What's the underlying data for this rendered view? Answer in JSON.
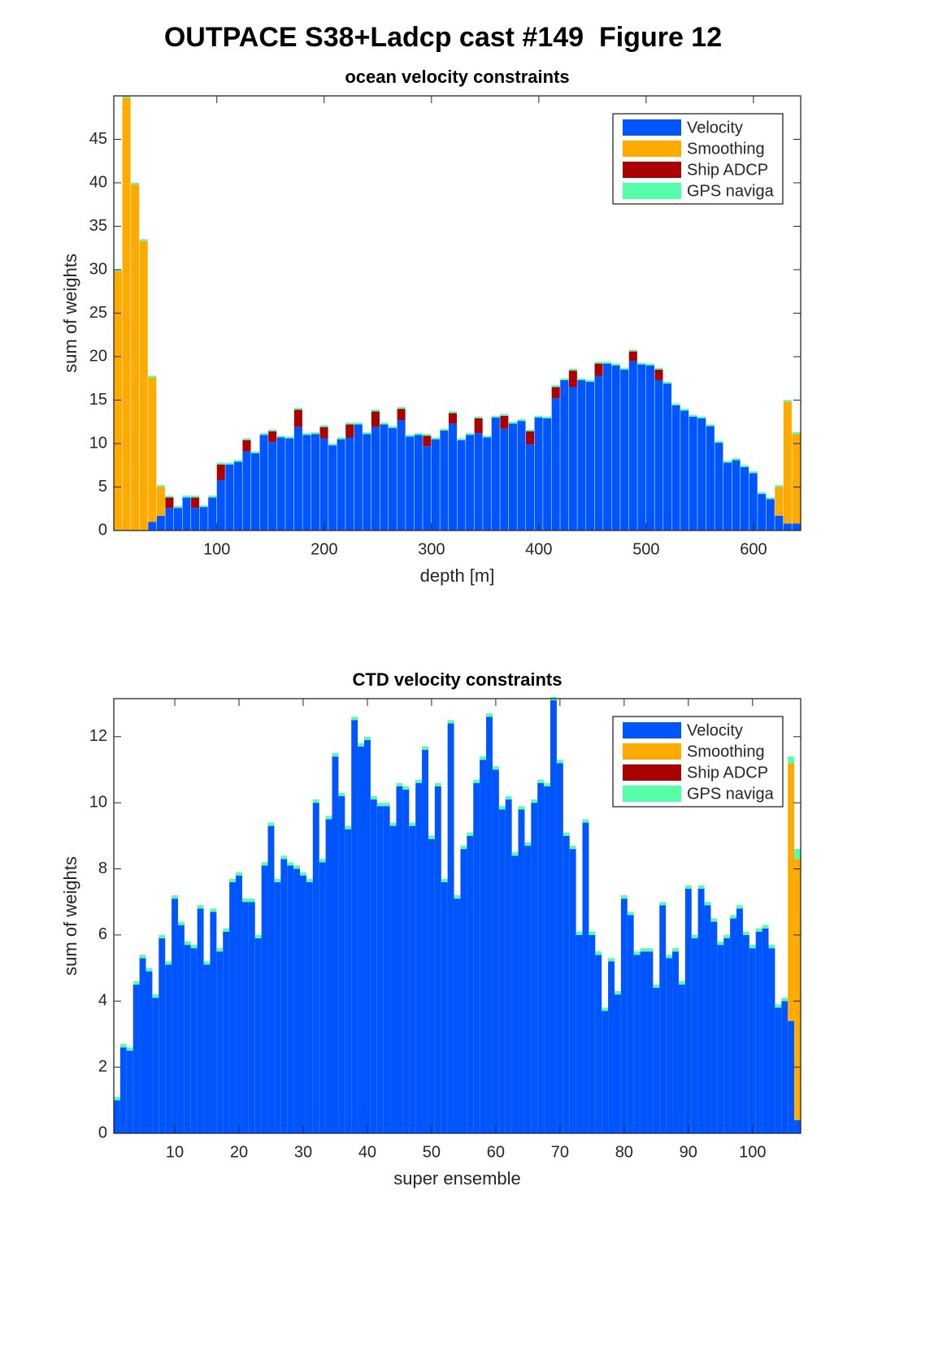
{
  "title": "OUTPACE S38+Ladcp cast #149  Figure 12",
  "chart_data": [
    {
      "type": "bar",
      "stacked": true,
      "title": "ocean velocity constraints",
      "xlabel": "depth [m]",
      "ylabel": "sum of weights",
      "x": [
        8,
        16,
        24,
        32,
        40,
        48,
        56,
        64,
        72,
        80,
        88,
        96,
        104,
        112,
        120,
        128,
        136,
        144,
        152,
        160,
        168,
        176,
        184,
        192,
        200,
        208,
        216,
        224,
        232,
        240,
        248,
        256,
        264,
        272,
        280,
        288,
        296,
        304,
        312,
        320,
        328,
        336,
        344,
        352,
        360,
        368,
        376,
        384,
        392,
        400,
        408,
        416,
        424,
        432,
        440,
        448,
        456,
        464,
        472,
        480,
        488,
        496,
        504,
        512,
        520,
        528,
        536,
        544,
        552,
        560,
        568,
        576,
        584,
        592,
        600,
        608,
        616,
        624,
        632,
        640
      ],
      "xlim": [
        4,
        644
      ],
      "xticks": [
        100,
        200,
        300,
        400,
        500,
        600
      ],
      "ylim": [
        0,
        50
      ],
      "yticks": [
        0,
        5,
        10,
        15,
        20,
        25,
        30,
        35,
        40,
        45
      ],
      "legend": "upper right",
      "series": [
        {
          "name": "Velocity",
          "color": "#0055ff",
          "values": [
            0,
            0,
            0,
            0,
            1,
            1.7,
            2.6,
            2.6,
            3.8,
            2.6,
            2.7,
            3.8,
            5.8,
            7.6,
            7.9,
            9.1,
            8.9,
            11,
            10.2,
            10.7,
            10.6,
            11.9,
            11,
            11.1,
            10.6,
            9.8,
            10.5,
            10.7,
            12.2,
            11.1,
            11.9,
            12.2,
            11.8,
            12.7,
            10.8,
            11,
            9.7,
            10.5,
            11.5,
            12.3,
            10.4,
            11,
            11.2,
            10.7,
            13,
            11.7,
            12.3,
            12.6,
            9.9,
            13,
            12.9,
            15.2,
            17.3,
            16.5,
            17.3,
            17.1,
            17.8,
            19.2,
            19,
            18.5,
            19.5,
            19.1,
            19,
            17.3,
            16.9,
            14.4,
            13.8,
            13.1,
            12.9,
            12,
            10.1,
            7.8,
            8.1,
            7.3,
            6.6,
            4.2,
            3.6,
            1.7,
            0.8,
            0.8
          ]
        },
        {
          "name": "Smoothing",
          "color": "#ffaa00",
          "values": [
            29.8,
            49.8,
            39.8,
            33.3,
            16.6,
            3.3,
            0,
            0,
            0,
            0,
            0,
            0,
            0,
            0,
            0,
            0,
            0,
            0,
            0,
            0,
            0,
            0,
            0,
            0,
            0,
            0,
            0,
            0,
            0,
            0,
            0,
            0,
            0,
            0,
            0,
            0,
            0,
            0,
            0,
            0,
            0,
            0,
            0,
            0,
            0,
            0,
            0,
            0,
            0,
            0,
            0,
            0,
            0,
            0,
            0,
            0,
            0,
            0,
            0,
            0,
            0,
            0,
            0,
            0,
            0,
            0,
            0,
            0,
            0,
            0,
            0,
            0,
            0,
            0,
            0,
            0,
            0,
            3.3,
            14,
            10.3
          ]
        },
        {
          "name": "Ship ADCP",
          "color": "#aa0000",
          "values": [
            0,
            0,
            0,
            0,
            0,
            0,
            1.2,
            0,
            0,
            1.2,
            0,
            0,
            1.8,
            0,
            0,
            1.3,
            0,
            0,
            1.2,
            0,
            0,
            2,
            0,
            0,
            1.3,
            0,
            0,
            1.5,
            0,
            0,
            1.8,
            0,
            0,
            1.3,
            0,
            0,
            1.2,
            0,
            0,
            1.2,
            0,
            0,
            1.7,
            0,
            0,
            1.5,
            0,
            0,
            1.5,
            0,
            0,
            1.3,
            0,
            1.9,
            0,
            0,
            1.4,
            0,
            0,
            0,
            1.1,
            0,
            0,
            1.2,
            0,
            0,
            0,
            0,
            0,
            0,
            0,
            0,
            0,
            0,
            0,
            0,
            0,
            0,
            0,
            0
          ]
        },
        {
          "name": "GPS naviga",
          "color": "#55ffaa",
          "values": [
            0.2,
            0.2,
            0.2,
            0.2,
            0.2,
            0.2,
            0.2,
            0.2,
            0.2,
            0.2,
            0.2,
            0.2,
            0.2,
            0.2,
            0.2,
            0.2,
            0.2,
            0.2,
            0.2,
            0.2,
            0.2,
            0.2,
            0.2,
            0.2,
            0.2,
            0.2,
            0.2,
            0.2,
            0.2,
            0.2,
            0.2,
            0.2,
            0.2,
            0.2,
            0.2,
            0.2,
            0.2,
            0.2,
            0.2,
            0.2,
            0.2,
            0.2,
            0.2,
            0.2,
            0.2,
            0.2,
            0.2,
            0.2,
            0.2,
            0.2,
            0.2,
            0.2,
            0.2,
            0.2,
            0.2,
            0.2,
            0.2,
            0.2,
            0.2,
            0.2,
            0.2,
            0.2,
            0.2,
            0.2,
            0.2,
            0.2,
            0.2,
            0.2,
            0.2,
            0.2,
            0.2,
            0.2,
            0.2,
            0.2,
            0.2,
            0.2,
            0.2,
            0.2,
            0.2,
            0.2
          ]
        }
      ]
    },
    {
      "type": "bar",
      "stacked": true,
      "title": "CTD velocity constraints",
      "xlabel": "super ensemble",
      "ylabel": "sum of weights",
      "x": [
        1,
        2,
        3,
        4,
        5,
        6,
        7,
        8,
        9,
        10,
        11,
        12,
        13,
        14,
        15,
        16,
        17,
        18,
        19,
        20,
        21,
        22,
        23,
        24,
        25,
        26,
        27,
        28,
        29,
        30,
        31,
        32,
        33,
        34,
        35,
        36,
        37,
        38,
        39,
        40,
        41,
        42,
        43,
        44,
        45,
        46,
        47,
        48,
        49,
        50,
        51,
        52,
        53,
        54,
        55,
        56,
        57,
        58,
        59,
        60,
        61,
        62,
        63,
        64,
        65,
        66,
        67,
        68,
        69,
        70,
        71,
        72,
        73,
        74,
        75,
        76,
        77,
        78,
        79,
        80,
        81,
        82,
        83,
        84,
        85,
        86,
        87,
        88,
        89,
        90,
        91,
        92,
        93,
        94,
        95,
        96,
        97,
        98,
        99,
        100,
        101,
        102,
        103,
        104,
        105,
        106,
        107
      ],
      "xlim": [
        0.5,
        107.5
      ],
      "xticks": [
        10,
        20,
        30,
        40,
        50,
        60,
        70,
        80,
        90,
        100
      ],
      "ylim": [
        0,
        13.15
      ],
      "yticks": [
        0,
        2,
        4,
        6,
        8,
        10,
        12
      ],
      "legend": "upper right",
      "series": [
        {
          "name": "Velocity",
          "color": "#0055ff",
          "values": [
            1,
            2.6,
            2.5,
            4.5,
            5.3,
            4.9,
            4.1,
            5.9,
            5.1,
            7.1,
            6.3,
            5.7,
            5.6,
            6.8,
            5.1,
            6.7,
            5.5,
            6.1,
            7.6,
            7.8,
            7,
            7,
            5.9,
            8.1,
            9.3,
            7.6,
            8.3,
            8.1,
            8,
            7.8,
            7.6,
            10,
            8.2,
            9.5,
            11.4,
            10.2,
            9.2,
            12.5,
            11.7,
            11.9,
            10.1,
            9.9,
            9.9,
            9.3,
            10.5,
            10.4,
            9.3,
            10.6,
            11.6,
            8.9,
            10.5,
            7.6,
            12.4,
            7.1,
            8.6,
            9,
            10.6,
            11.3,
            12.6,
            11,
            9.8,
            10.1,
            8.4,
            9.8,
            8.7,
            10,
            10.6,
            10.5,
            13.1,
            11.2,
            9,
            8.6,
            6,
            9.4,
            6,
            5.4,
            3.7,
            5.2,
            4.2,
            7.1,
            6.6,
            5.4,
            5.5,
            5.5,
            4.4,
            6.9,
            5.3,
            5.5,
            4.5,
            7.4,
            5.9,
            7.4,
            6.9,
            6.4,
            5.7,
            5.9,
            6.5,
            6.8,
            6,
            5.6,
            6.1,
            6.2,
            5.6,
            3.8,
            4,
            3.4,
            0.4
          ]
        },
        {
          "name": "Smoothing",
          "color": "#ffaa00",
          "values": [
            0,
            0,
            0,
            0,
            0,
            0,
            0,
            0,
            0,
            0,
            0,
            0,
            0,
            0,
            0,
            0,
            0,
            0,
            0,
            0,
            0,
            0,
            0,
            0,
            0,
            0,
            0,
            0,
            0,
            0,
            0,
            0,
            0,
            0,
            0,
            0,
            0,
            0,
            0,
            0,
            0,
            0,
            0,
            0,
            0,
            0,
            0,
            0,
            0,
            0,
            0,
            0,
            0,
            0,
            0,
            0,
            0,
            0,
            0,
            0,
            0,
            0,
            0,
            0,
            0,
            0,
            0,
            0,
            0,
            0,
            0,
            0,
            0,
            0,
            0,
            0,
            0,
            0,
            0,
            0,
            0,
            0,
            0,
            0,
            0,
            0,
            0,
            0,
            0,
            0,
            0,
            0,
            0,
            0,
            0,
            0,
            0,
            0,
            0,
            0,
            0,
            0,
            0,
            0,
            0,
            7.8,
            7.9
          ]
        },
        {
          "name": "Ship ADCP",
          "color": "#aa0000",
          "values": [
            0,
            0,
            0,
            0,
            0,
            0,
            0,
            0,
            0,
            0,
            0,
            0,
            0,
            0,
            0,
            0,
            0,
            0,
            0,
            0,
            0,
            0,
            0,
            0,
            0,
            0,
            0,
            0,
            0,
            0,
            0,
            0,
            0,
            0,
            0,
            0,
            0,
            0,
            0,
            0,
            0,
            0,
            0,
            0,
            0,
            0,
            0,
            0,
            0,
            0,
            0,
            0,
            0,
            0,
            0,
            0,
            0,
            0,
            0,
            0,
            0,
            0,
            0,
            0,
            0,
            0,
            0,
            0,
            0,
            0,
            0,
            0,
            0,
            0,
            0,
            0,
            0,
            0,
            0,
            0,
            0,
            0,
            0,
            0,
            0,
            0,
            0,
            0,
            0,
            0,
            0,
            0,
            0,
            0,
            0,
            0,
            0,
            0,
            0,
            0,
            0,
            0,
            0,
            0,
            0,
            0,
            0
          ]
        },
        {
          "name": "GPS naviga",
          "color": "#55ffaa",
          "values": [
            0.1,
            0.1,
            0.1,
            0.1,
            0.1,
            0.1,
            0.1,
            0.1,
            0.1,
            0.1,
            0.1,
            0.1,
            0.1,
            0.1,
            0.1,
            0.1,
            0.1,
            0.1,
            0.1,
            0.1,
            0.1,
            0.1,
            0.1,
            0.1,
            0.1,
            0.1,
            0.1,
            0.1,
            0.1,
            0.1,
            0.1,
            0.1,
            0.1,
            0.1,
            0.1,
            0.1,
            0.1,
            0.1,
            0.1,
            0.1,
            0.1,
            0.1,
            0.1,
            0.1,
            0.1,
            0.1,
            0.1,
            0.1,
            0.1,
            0.1,
            0.1,
            0.1,
            0.1,
            0.1,
            0.1,
            0.1,
            0.1,
            0.1,
            0.1,
            0.1,
            0.1,
            0.1,
            0.1,
            0.1,
            0.1,
            0.1,
            0.1,
            0.1,
            0.1,
            0.1,
            0.1,
            0.1,
            0.1,
            0.1,
            0.1,
            0.1,
            0.1,
            0.1,
            0.1,
            0.1,
            0.1,
            0.1,
            0.1,
            0.1,
            0.1,
            0.1,
            0.1,
            0.1,
            0.1,
            0.1,
            0.1,
            0.1,
            0.1,
            0.1,
            0.1,
            0.1,
            0.1,
            0.1,
            0.1,
            0.1,
            0.1,
            0.1,
            0.1,
            0.1,
            0.1,
            0.2,
            0.3
          ]
        }
      ]
    }
  ]
}
